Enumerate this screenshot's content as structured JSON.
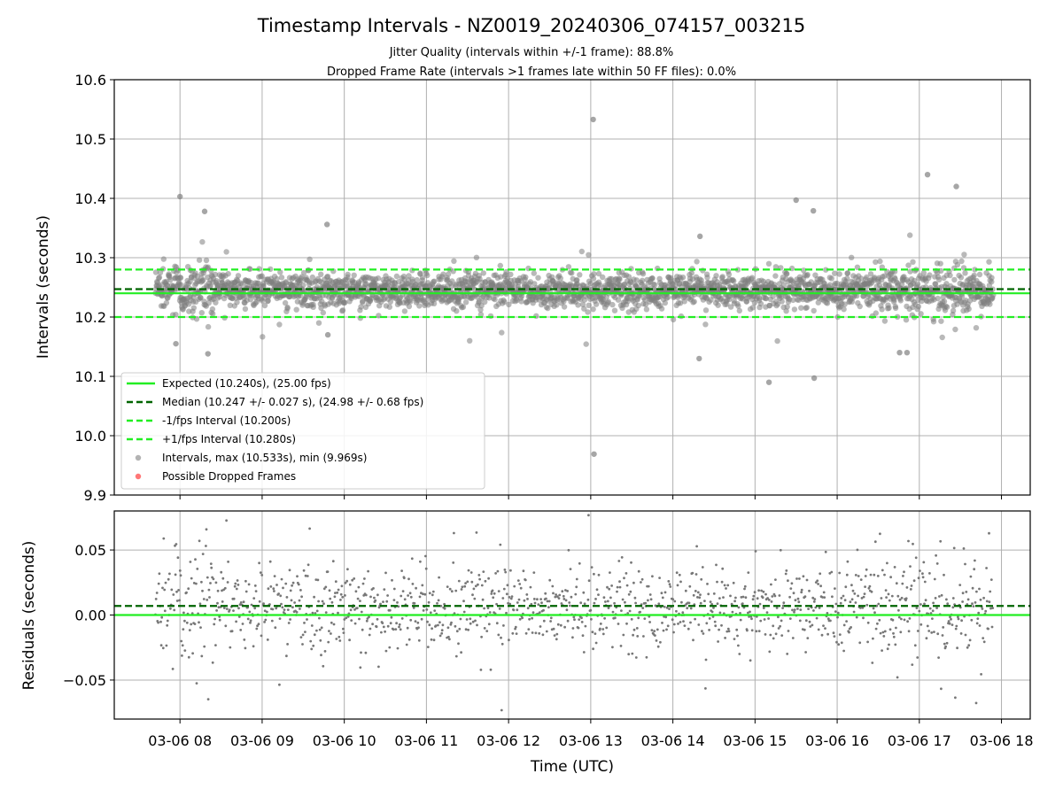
{
  "chart_data": {
    "type": "scatter",
    "title": "Timestamp Intervals - NZ0019_20240306_074157_003215",
    "subtitle_lines": [
      "Jitter Quality (intervals within +/-1 frame): 88.8%",
      "Dropped Frame Rate (intervals >1 frames late within 50 FF files): 0.0%"
    ],
    "xlabel": "Time (UTC)",
    "x_tick_labels": [
      "03-06 08",
      "03-06 09",
      "03-06 10",
      "03-06 11",
      "03-06 12",
      "03-06 13",
      "03-06 14",
      "03-06 15",
      "03-06 16",
      "03-06 17",
      "03-06 18"
    ],
    "x_data_range_hours": [
      7.7,
      17.9
    ],
    "x_axis_range_hours": [
      7.2,
      18.35
    ],
    "grid": true,
    "panels": {
      "intervals": {
        "ylabel": "Intervals (seconds)",
        "ylim": [
          9.9,
          10.6
        ],
        "y_ticks": [
          "10.6",
          "10.5",
          "10.4",
          "10.3",
          "10.2",
          "10.1",
          "10.0",
          "9.9"
        ],
        "y_tick_values": [
          10.6,
          10.5,
          10.4,
          10.3,
          10.2,
          10.1,
          10.0,
          9.9
        ],
        "lines": [
          {
            "name": "Expected (10.240s), (25.00 fps)",
            "value": 10.24,
            "color": "#22ee22",
            "style": "solid"
          },
          {
            "name": "Median (10.247 +/- 0.027 s), (24.98 +/- 0.68 fps)",
            "value": 10.247,
            "color": "#006400",
            "style": "dashed"
          },
          {
            "name": "-1/fps Interval (10.200s)",
            "value": 10.2,
            "color": "#22ee22",
            "style": "dashed"
          },
          {
            "name": "+1/fps Interval (10.280s)",
            "value": 10.28,
            "color": "#22ee22",
            "style": "dashed"
          }
        ],
        "scatter_series": [
          {
            "name": "Intervals, max (10.533s), min (9.969s)",
            "color": "#808080",
            "max": 10.533,
            "min": 9.969,
            "center": 10.245,
            "spread": 0.022
          },
          {
            "name": "Possible Dropped Frames",
            "color": "#ff5555",
            "count": 0
          }
        ],
        "notable_points": [
          {
            "x": 8.0,
            "y": 10.403
          },
          {
            "x": 8.3,
            "y": 10.378
          },
          {
            "x": 8.34,
            "y": 10.138
          },
          {
            "x": 7.95,
            "y": 10.155
          },
          {
            "x": 9.79,
            "y": 10.356
          },
          {
            "x": 9.8,
            "y": 10.17
          },
          {
            "x": 13.03,
            "y": 10.533
          },
          {
            "x": 13.04,
            "y": 9.969
          },
          {
            "x": 14.32,
            "y": 10.13
          },
          {
            "x": 14.33,
            "y": 10.336
          },
          {
            "x": 15.17,
            "y": 10.09
          },
          {
            "x": 15.5,
            "y": 10.397
          },
          {
            "x": 15.72,
            "y": 10.097
          },
          {
            "x": 15.71,
            "y": 10.379
          },
          {
            "x": 17.1,
            "y": 10.44
          },
          {
            "x": 17.45,
            "y": 10.42
          },
          {
            "x": 16.76,
            "y": 10.14
          },
          {
            "x": 16.85,
            "y": 10.14
          }
        ]
      },
      "residuals": {
        "ylabel": "Residuals (seconds)",
        "ylim": [
          -0.08,
          0.08
        ],
        "y_ticks": [
          "0.05",
          "0.00",
          "−0.05"
        ],
        "y_tick_values": [
          0.05,
          0.0,
          -0.05
        ],
        "lines": [
          {
            "name": "Expected",
            "value": 0.0,
            "color": "#22ee22",
            "style": "solid"
          },
          {
            "name": "Median",
            "value": 0.007,
            "color": "#006400",
            "style": "dashed"
          }
        ],
        "scatter_color": "#777777"
      }
    },
    "legend": {
      "position": "lower-left"
    }
  }
}
